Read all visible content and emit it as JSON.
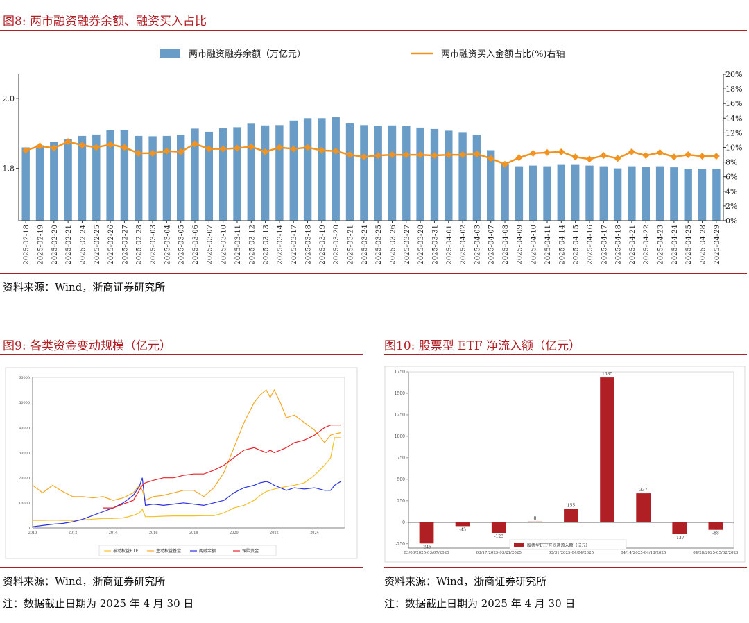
{
  "fig8": {
    "caption": "图8:  两市融资融券余额、融资买入占比",
    "legend_bar": "两市融资融券余额（万亿元）",
    "legend_line": "两市融资买入金额占比(%)右轴",
    "source": "资料来源：Wind，浙商证券研究所",
    "colors": {
      "bar": "#6a9cc8",
      "line": "#f2921f"
    }
  },
  "fig9": {
    "caption": "图9:  各类资金变动规模（亿元）",
    "source": "资料来源：Wind，浙商证券研究所",
    "note": "注：数据截止日期为 2025 年 4 月 30 日",
    "legend": [
      "被动权益ETF",
      "主动权益基金",
      "两融余额",
      "保险资金"
    ],
    "colors": [
      "#f5c026",
      "#f7a823",
      "#2a32e0",
      "#e8232a"
    ]
  },
  "fig10": {
    "caption": "图10:  股票型 ETF 净流入额（亿元）",
    "source": "资料来源：Wind，浙商证券研究所",
    "note": "注：数据截止日期为 2025 年 4 月 30 日",
    "legend": "股票型ETF区间净流入额（亿元）",
    "color": "#b01f24"
  },
  "chart_data": [
    {
      "type": "bar",
      "title": "两市融资融券余额、融资买入占比",
      "categories": [
        "2025-02-18",
        "2025-02-19",
        "2025-02-20",
        "2025-02-21",
        "2025-02-24",
        "2025-02-25",
        "2025-02-26",
        "2025-02-27",
        "2025-02-28",
        "2025-03-03",
        "2025-03-04",
        "2025-03-05",
        "2025-03-06",
        "2025-03-07",
        "2025-03-10",
        "2025-03-11",
        "2025-03-12",
        "2025-03-13",
        "2025-03-14",
        "2025-03-17",
        "2025-03-18",
        "2025-03-19",
        "2025-03-20",
        "2025-03-21",
        "2025-03-24",
        "2025-03-25",
        "2025-03-26",
        "2025-03-27",
        "2025-03-28",
        "2025-03-31",
        "2025-04-01",
        "2025-04-02",
        "2025-04-03",
        "2025-04-07",
        "2025-04-08",
        "2025-04-09",
        "2025-04-10",
        "2025-04-11",
        "2025-04-14",
        "2025-04-15",
        "2025-04-16",
        "2025-04-17",
        "2025-04-18",
        "2025-04-21",
        "2025-04-22",
        "2025-04-23",
        "2025-04-24",
        "2025-04-25",
        "2025-04-28",
        "2025-04-29"
      ],
      "series": [
        {
          "name": "两市融资融券余额（万亿元）",
          "axis": "left",
          "values": [
            1.86,
            1.866,
            1.876,
            1.883,
            1.893,
            1.897,
            1.909,
            1.909,
            1.893,
            1.892,
            1.893,
            1.896,
            1.914,
            1.905,
            1.915,
            1.918,
            1.928,
            1.923,
            1.924,
            1.937,
            1.944,
            1.944,
            1.948,
            1.929,
            1.924,
            1.922,
            1.923,
            1.921,
            1.917,
            1.913,
            1.908,
            1.904,
            1.896,
            1.852,
            1.812,
            1.806,
            1.808,
            1.806,
            1.81,
            1.81,
            1.808,
            1.806,
            1.8,
            1.806,
            1.805,
            1.806,
            1.803,
            1.799,
            1.799,
            1.799
          ]
        },
        {
          "name": "两市融资买入金额占比(%)右轴",
          "axis": "right",
          "values": [
            9.6,
            10.2,
            9.9,
            10.8,
            10.3,
            10.0,
            10.4,
            10.0,
            9.2,
            9.2,
            9.5,
            9.4,
            10.5,
            9.8,
            9.8,
            9.9,
            10.1,
            9.4,
            10.0,
            9.8,
            10.0,
            9.6,
            9.5,
            9.0,
            8.7,
            8.9,
            9.0,
            9.0,
            9.0,
            8.9,
            9.0,
            9.0,
            9.1,
            8.5,
            7.7,
            8.6,
            9.2,
            9.3,
            9.4,
            8.7,
            8.4,
            8.9,
            8.5,
            9.4,
            8.9,
            9.3,
            8.7,
            9.0,
            8.8,
            8.8
          ]
        }
      ],
      "ylim_left": [
        1.65,
        2.07
      ],
      "yticks_left": [
        1.8,
        2.0
      ],
      "ylim_right": [
        0,
        20
      ],
      "yticks_right": [
        "0%",
        "2%",
        "4%",
        "6%",
        "8%",
        "10%",
        "12%",
        "14%",
        "16%",
        "18%",
        "20%"
      ],
      "legend_position": "top",
      "grid": false
    },
    {
      "type": "line",
      "title": "各类资金变动规模（亿元）",
      "x": [
        2010.0,
        2010.5,
        2011.0,
        2011.5,
        2012.0,
        2012.5,
        2013.0,
        2013.5,
        2014.0,
        2014.5,
        2015.0,
        2015.3,
        2015.45,
        2015.6,
        2016.0,
        2016.5,
        2017.0,
        2017.5,
        2018.0,
        2018.5,
        2019.0,
        2019.5,
        2020.0,
        2020.5,
        2021.0,
        2021.3,
        2021.6,
        2021.8,
        2022.0,
        2022.3,
        2022.6,
        2023.0,
        2023.5,
        2024.0,
        2024.5,
        2024.8,
        2025.0,
        2025.3
      ],
      "xticks": [
        "2010",
        "2012",
        "2014",
        "2016",
        "2018",
        "2020",
        "2022",
        "2024"
      ],
      "ylim": [
        0,
        60000
      ],
      "yticks": [
        "0",
        "10000",
        "20000",
        "30000",
        "40000",
        "50000",
        "60000"
      ],
      "series": [
        {
          "name": "被动权益ETF",
          "values": [
            3000,
            3000,
            3100,
            3000,
            3000,
            3200,
            3500,
            3800,
            3800,
            4000,
            5000,
            6000,
            7500,
            4500,
            4500,
            4700,
            4800,
            4800,
            4800,
            4900,
            4900,
            6000,
            8000,
            9000,
            11000,
            13000,
            14500,
            15000,
            15500,
            16000,
            16500,
            17000,
            18000,
            21000,
            25000,
            28000,
            36000,
            36000
          ]
        },
        {
          "name": "主动权益基金",
          "values": [
            17000,
            14000,
            17000,
            14500,
            12500,
            12500,
            12000,
            12500,
            11000,
            12000,
            14000,
            17000,
            15000,
            11000,
            12500,
            13000,
            14000,
            15000,
            15000,
            12500,
            16000,
            22000,
            32000,
            42000,
            50000,
            53000,
            55000,
            52000,
            55000,
            50000,
            44000,
            45000,
            42000,
            39000,
            34000,
            37000,
            37500,
            38000
          ]
        },
        {
          "name": "两融余额",
          "values": [
            500,
            1000,
            1500,
            1800,
            2500,
            3500,
            5000,
            6500,
            8000,
            10000,
            13000,
            16500,
            20000,
            9000,
            9500,
            9000,
            9500,
            10000,
            9500,
            9000,
            10000,
            11000,
            14000,
            16000,
            17000,
            18000,
            18500,
            18000,
            17000,
            16000,
            15000,
            16000,
            15500,
            16000,
            15000,
            15000,
            17000,
            18500
          ]
        },
        {
          "name": "保险资金",
          "values": [
            null,
            null,
            null,
            null,
            null,
            null,
            null,
            8000,
            8000,
            9500,
            11000,
            15000,
            17000,
            18000,
            19000,
            20000,
            20000,
            21000,
            21500,
            21500,
            23000,
            25000,
            28000,
            31000,
            32000,
            31000,
            30000,
            31000,
            30000,
            31000,
            32000,
            34000,
            35000,
            37000,
            40000,
            41000,
            41000,
            41000
          ]
        }
      ],
      "legend_position": "bottom",
      "grid": false
    },
    {
      "type": "bar",
      "title": "股票型 ETF 净流入额（亿元）",
      "categories": [
        "03/03/2025-03/07/2025",
        "03/10/2025-03/14/2025",
        "03/17/2025-03/21/2025",
        "03/24/2025-03/28/2025",
        "03/31/2025-04/04/2025",
        "04/07/2025-04/11/2025",
        "04/14/2025-04/18/2025",
        "04/21/2025-04/25/2025",
        "04/28/2025-05/02/2025"
      ],
      "xtick_labels": [
        "03/03/2025-03/07/2025",
        "",
        "03/17/2025-03/21/2025",
        "",
        "03/31/2025-04/04/2025",
        "",
        "04/14/2025-04/18/2025",
        "",
        "04/28/2025-05/02/2025"
      ],
      "values": [
        -246,
        -45,
        -123,
        8,
        155,
        1685,
        337,
        -137,
        -88
      ],
      "value_labels": [
        "-246",
        "-45",
        "-123",
        "8",
        "155",
        "1685",
        "337",
        "-137",
        "-88"
      ],
      "ylim": [
        -300,
        1750
      ],
      "yticks": [
        "-250",
        "0",
        "250",
        "500",
        "750",
        "1000",
        "1250",
        "1500",
        "1750"
      ],
      "legend_position": "bottom",
      "grid": false
    }
  ]
}
